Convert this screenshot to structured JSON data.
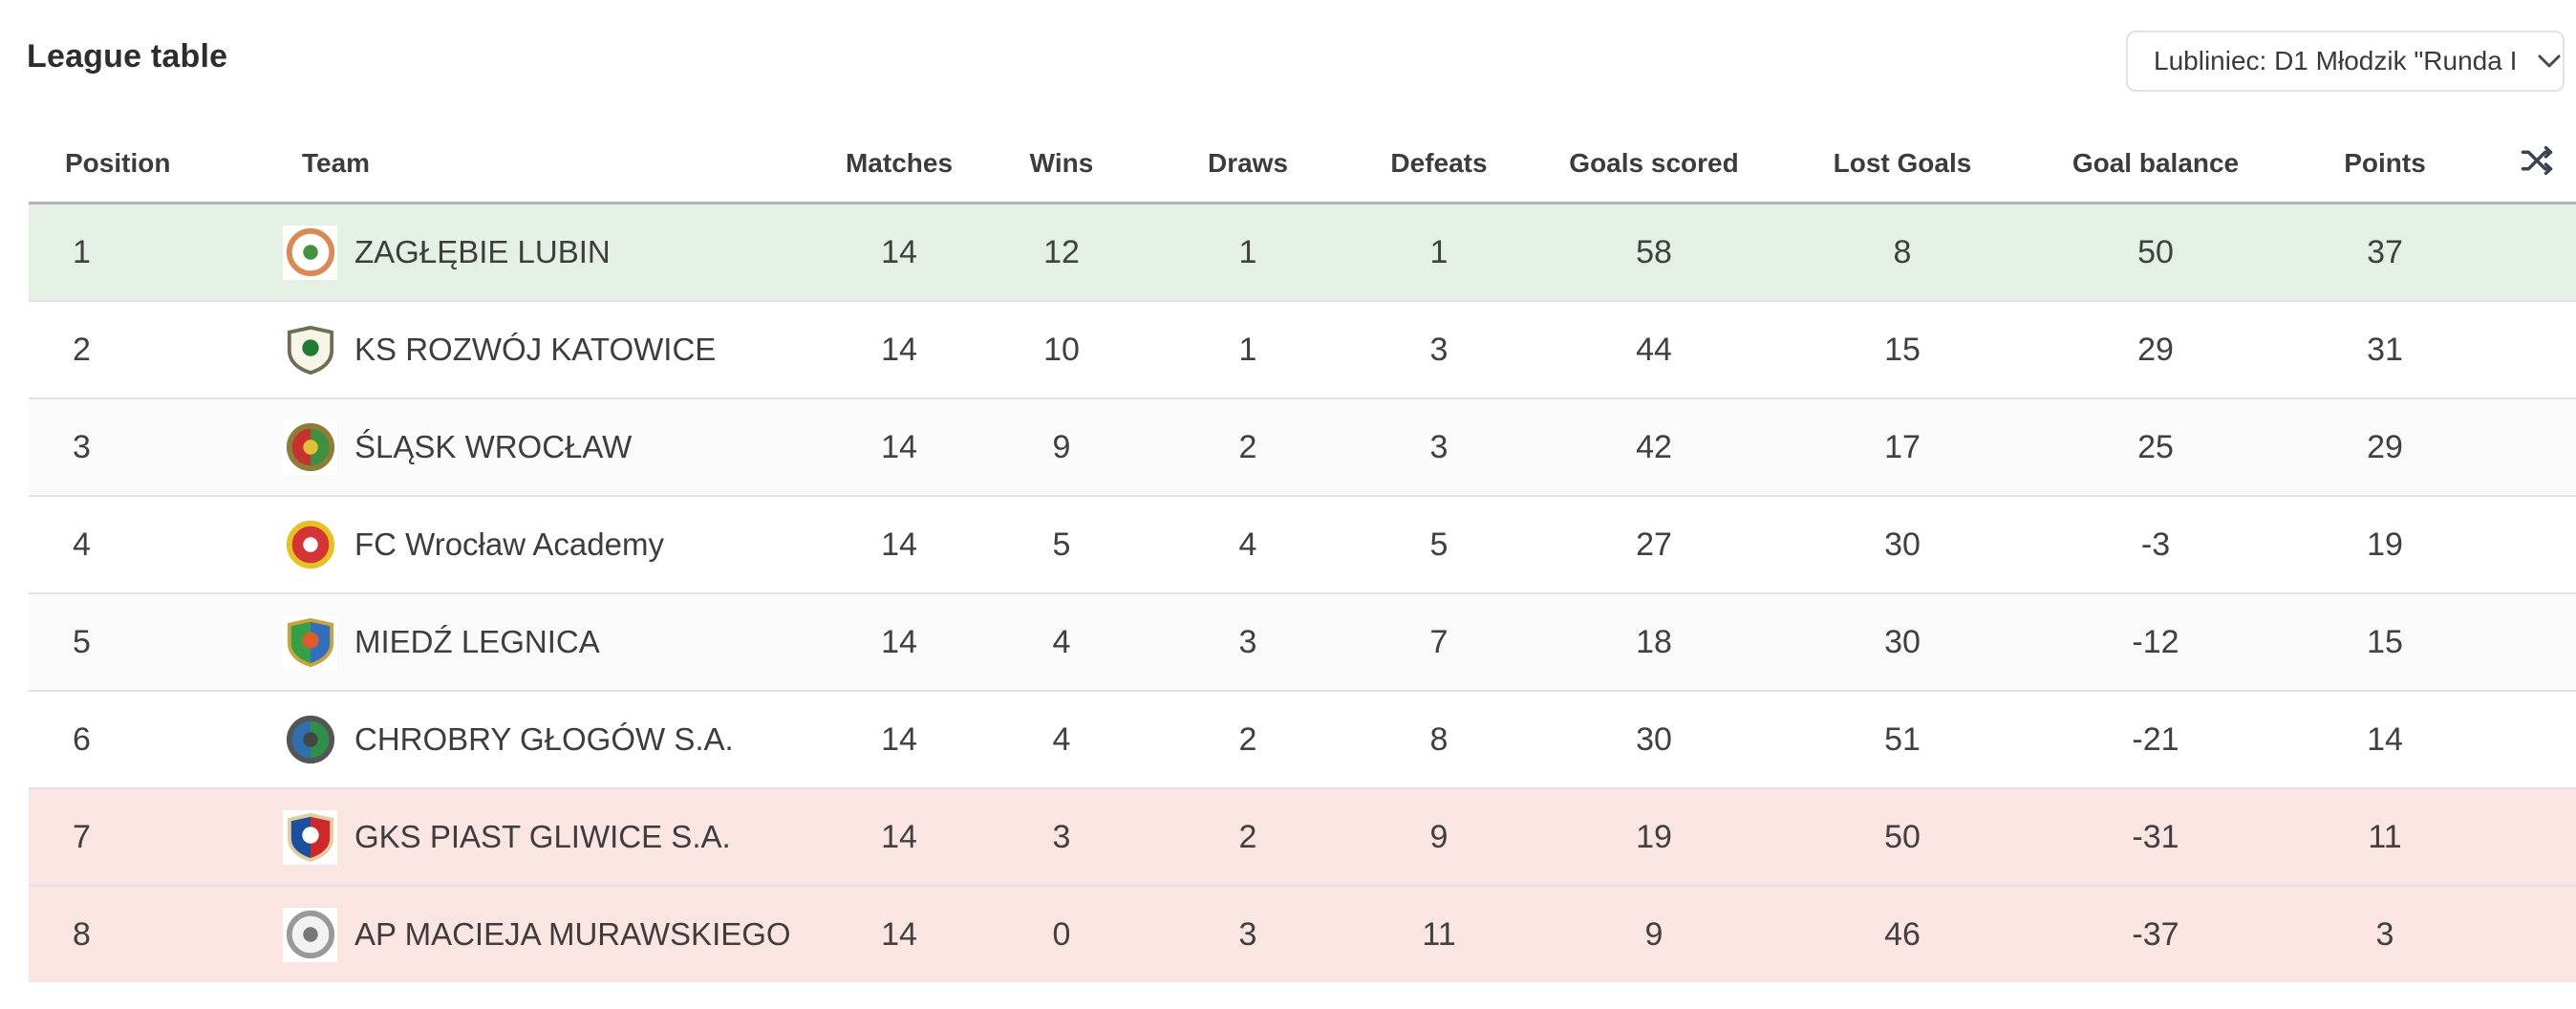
{
  "page": {
    "title": "League table"
  },
  "league_select": {
    "value": "Lubliniec: D1 Młodzik \"Runda I",
    "chevron_icon": "chevron-down-icon"
  },
  "colors": {
    "promotion_row": "#e5f0e5",
    "relegation_row": "#fbe5e3",
    "stripe_row": "#fafafa",
    "header_border": "#b4b4b4",
    "row_border": "#e2e2e2"
  },
  "table": {
    "headers": {
      "position": "Position",
      "team": "Team",
      "matches": "Matches",
      "wins": "Wins",
      "draws": "Draws",
      "defeats": "Defeats",
      "goals_scored": "Goals scored",
      "lost_goals": "Lost Goals",
      "goal_balance": "Goal balance",
      "points": "Points"
    },
    "shuffle_icon": "shuffle-icon",
    "rows": [
      {
        "position": "1",
        "team": "ZAGŁĘBIE LUBIN",
        "matches": "14",
        "wins": "12",
        "draws": "1",
        "defeats": "1",
        "goals_scored": "58",
        "lost_goals": "8",
        "goal_balance": "50",
        "points": "37",
        "highlight": "promotion",
        "crest": {
          "id": "zaglebie-lubin",
          "shape": "circle",
          "colors": [
            "#dc8a54",
            "#ffffff",
            "#ffffff",
            "#43923d"
          ]
        }
      },
      {
        "position": "2",
        "team": "KS ROZWÓJ KATOWICE",
        "matches": "14",
        "wins": "10",
        "draws": "1",
        "defeats": "3",
        "goals_scored": "44",
        "lost_goals": "15",
        "goal_balance": "29",
        "points": "31",
        "highlight": "",
        "crest": {
          "id": "rozwoj-katowice",
          "shape": "shield",
          "colors": [
            "#6e6e55",
            "#f7f4e8",
            "#f7f4e8",
            "#1f7c33"
          ]
        }
      },
      {
        "position": "3",
        "team": "ŚLĄSK WROCŁAW",
        "matches": "14",
        "wins": "9",
        "draws": "2",
        "defeats": "3",
        "goals_scored": "42",
        "lost_goals": "17",
        "goal_balance": "25",
        "points": "29",
        "highlight": "",
        "crest": {
          "id": "slask-wroclaw",
          "shape": "circle",
          "colors": [
            "#8d7d36",
            "#c93030",
            "#3d9040",
            "#e3bf35"
          ]
        }
      },
      {
        "position": "4",
        "team": "FC Wrocław Academy",
        "matches": "14",
        "wins": "5",
        "draws": "4",
        "defeats": "5",
        "goals_scored": "27",
        "lost_goals": "30",
        "goal_balance": "-3",
        "points": "19",
        "highlight": "",
        "crest": {
          "id": "fc-wroclaw-academy",
          "shape": "circle",
          "colors": [
            "#e6c122",
            "#d43434",
            "#d43434",
            "#ffffff"
          ]
        }
      },
      {
        "position": "5",
        "team": "MIEDŹ LEGNICA",
        "matches": "14",
        "wins": "4",
        "draws": "3",
        "defeats": "7",
        "goals_scored": "18",
        "lost_goals": "30",
        "goal_balance": "-12",
        "points": "15",
        "highlight": "",
        "crest": {
          "id": "miedz-legnica",
          "shape": "shield",
          "colors": [
            "#c9a43d",
            "#35a048",
            "#2f6fc0",
            "#de5c2a"
          ]
        }
      },
      {
        "position": "6",
        "team": "CHROBRY GŁOGÓW S.A.",
        "matches": "14",
        "wins": "4",
        "draws": "2",
        "defeats": "8",
        "goals_scored": "30",
        "lost_goals": "51",
        "goal_balance": "-21",
        "points": "14",
        "highlight": "",
        "crest": {
          "id": "chrobry-glogow",
          "shape": "circle",
          "colors": [
            "#555555",
            "#2e6faf",
            "#2e8f4a",
            "#444444"
          ]
        }
      },
      {
        "position": "7",
        "team": "GKS PIAST GLIWICE S.A.",
        "matches": "14",
        "wins": "3",
        "draws": "2",
        "defeats": "9",
        "goals_scored": "19",
        "lost_goals": "50",
        "goal_balance": "-31",
        "points": "11",
        "highlight": "relegation",
        "crest": {
          "id": "piast-gliwice",
          "shape": "shield",
          "colors": [
            "#dfd0a2",
            "#1d4f9f",
            "#cf2828",
            "#ffffff"
          ]
        }
      },
      {
        "position": "8",
        "team": "AP MACIEJA MURAWSKIEGO",
        "matches": "14",
        "wins": "0",
        "draws": "3",
        "defeats": "11",
        "goals_scored": "9",
        "lost_goals": "46",
        "goal_balance": "-37",
        "points": "3",
        "highlight": "relegation",
        "crest": {
          "id": "ap-macieja-murawskiego",
          "shape": "circle",
          "colors": [
            "#999999",
            "#f2f2f2",
            "#f2f2f2",
            "#777777"
          ]
        }
      }
    ]
  }
}
